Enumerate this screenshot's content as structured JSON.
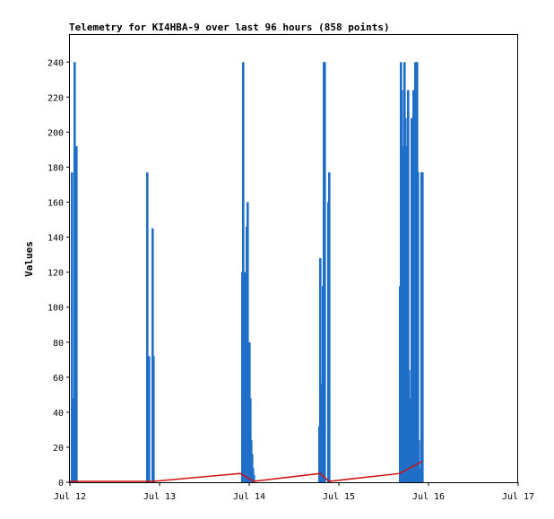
{
  "chart_data": {
    "type": "bar",
    "title": "Telemetry for KI4HBA-9 over last 96 hours (858 points)",
    "xlabel": "",
    "ylabel": "Values",
    "xlim": [
      0,
      5
    ],
    "ylim": [
      0,
      256
    ],
    "x_ticks": [
      "Jul 12",
      "Jul 13",
      "Jul 14",
      "Jul 15",
      "Jul 16",
      "Jul 17"
    ],
    "y_ticks": [
      0,
      20,
      40,
      60,
      80,
      100,
      120,
      140,
      160,
      180,
      200,
      220,
      240
    ],
    "grid": false,
    "legend": "none",
    "colors": {
      "bars": "#1f6fc8",
      "line": "#d01010",
      "axis": "#000000"
    },
    "series": [
      {
        "kind": "bars",
        "points": [
          {
            "x": 0.02,
            "y": 177
          },
          {
            "x": 0.03,
            "y": 48
          },
          {
            "x": 0.05,
            "y": 240
          },
          {
            "x": 0.07,
            "y": 192
          },
          {
            "x": 0.86,
            "y": 177
          },
          {
            "x": 0.88,
            "y": 72
          },
          {
            "x": 0.92,
            "y": 145
          },
          {
            "x": 0.93,
            "y": 72
          },
          {
            "x": 1.92,
            "y": 120
          },
          {
            "x": 1.93,
            "y": 240
          },
          {
            "x": 1.94,
            "y": 40
          },
          {
            "x": 1.95,
            "y": 120
          },
          {
            "x": 1.96,
            "y": 96
          },
          {
            "x": 1.97,
            "y": 146
          },
          {
            "x": 1.98,
            "y": 160
          },
          {
            "x": 1.99,
            "y": 60
          },
          {
            "x": 2.0,
            "y": 80
          },
          {
            "x": 2.01,
            "y": 48
          },
          {
            "x": 2.02,
            "y": 24
          },
          {
            "x": 2.03,
            "y": 16
          },
          {
            "x": 2.04,
            "y": 8
          },
          {
            "x": 2.05,
            "y": 4
          },
          {
            "x": 2.78,
            "y": 32
          },
          {
            "x": 2.79,
            "y": 128
          },
          {
            "x": 2.81,
            "y": 56
          },
          {
            "x": 2.82,
            "y": 112
          },
          {
            "x": 2.83,
            "y": 240
          },
          {
            "x": 2.84,
            "y": 240
          },
          {
            "x": 2.88,
            "y": 160
          },
          {
            "x": 2.89,
            "y": 177
          },
          {
            "x": 3.68,
            "y": 112
          },
          {
            "x": 3.69,
            "y": 240
          },
          {
            "x": 3.7,
            "y": 224
          },
          {
            "x": 3.71,
            "y": 64
          },
          {
            "x": 3.72,
            "y": 192
          },
          {
            "x": 3.73,
            "y": 240
          },
          {
            "x": 3.74,
            "y": 208
          },
          {
            "x": 3.75,
            "y": 192
          },
          {
            "x": 3.76,
            "y": 80
          },
          {
            "x": 3.77,
            "y": 224
          },
          {
            "x": 3.78,
            "y": 64
          },
          {
            "x": 3.79,
            "y": 24
          },
          {
            "x": 3.8,
            "y": 48
          },
          {
            "x": 3.81,
            "y": 208
          },
          {
            "x": 3.82,
            "y": 208
          },
          {
            "x": 3.83,
            "y": 224
          },
          {
            "x": 3.84,
            "y": 177
          },
          {
            "x": 3.85,
            "y": 240
          },
          {
            "x": 3.86,
            "y": 208
          },
          {
            "x": 3.87,
            "y": 240
          },
          {
            "x": 3.88,
            "y": 177
          },
          {
            "x": 3.89,
            "y": 24
          },
          {
            "x": 3.9,
            "y": 8
          },
          {
            "x": 3.92,
            "y": 177
          },
          {
            "x": 3.93,
            "y": 177
          }
        ]
      },
      {
        "kind": "line",
        "points": [
          {
            "x": 0.0,
            "y": 0.5
          },
          {
            "x": 0.93,
            "y": 0.5
          },
          {
            "x": 1.9,
            "y": 5
          },
          {
            "x": 2.05,
            "y": 0.5
          },
          {
            "x": 2.79,
            "y": 5
          },
          {
            "x": 2.89,
            "y": 0.5
          },
          {
            "x": 3.68,
            "y": 5
          },
          {
            "x": 3.93,
            "y": 12
          }
        ]
      }
    ]
  }
}
